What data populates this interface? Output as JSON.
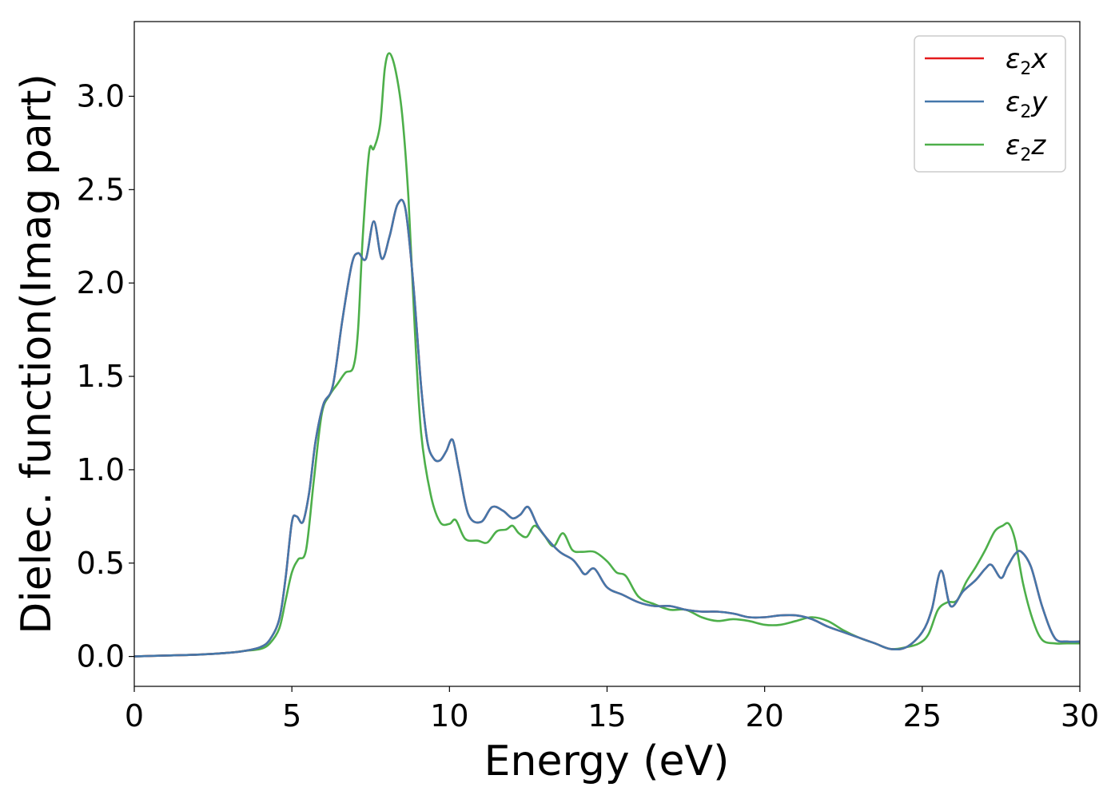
{
  "chart_data": {
    "type": "line",
    "xlabel": "Energy (eV)",
    "ylabel": "Dielec. function(Imag part)",
    "xlim": [
      0,
      30
    ],
    "ylim": [
      -0.16,
      3.4
    ],
    "xticks": [
      "0",
      "5",
      "10",
      "15",
      "20",
      "25",
      "30"
    ],
    "yticks": [
      "0.0",
      "0.5",
      "1.0",
      "1.5",
      "2.0",
      "2.5",
      "3.0"
    ],
    "grid": false,
    "legend_position": "top-right",
    "series": [
      {
        "name": "ε2x",
        "legend_base": "ε",
        "legend_sub": "2",
        "legend_var": "x",
        "color": "#e41a1c",
        "x": [
          0,
          1,
          2,
          3,
          3.5,
          4,
          4.3,
          4.6,
          4.8,
          5.0,
          5.15,
          5.35,
          5.55,
          5.75,
          6.0,
          6.3,
          6.6,
          6.9,
          7.1,
          7.35,
          7.6,
          7.85,
          8.1,
          8.35,
          8.6,
          8.85,
          9.1,
          9.3,
          9.5,
          9.7,
          9.9,
          10.1,
          10.3,
          10.6,
          11.0,
          11.35,
          11.7,
          12.0,
          12.25,
          12.5,
          12.8,
          13.1,
          13.5,
          13.9,
          14.1,
          14.3,
          14.6,
          15.0,
          15.5,
          16.0,
          16.5,
          17.0,
          17.5,
          18.0,
          18.5,
          19.0,
          19.5,
          20.0,
          20.5,
          21.0,
          21.5,
          22.0,
          22.5,
          23.0,
          23.5,
          24.0,
          24.5,
          25.0,
          25.3,
          25.6,
          25.9,
          26.3,
          26.7,
          27.0,
          27.2,
          27.5,
          27.7,
          27.95,
          28.15,
          28.45,
          28.8,
          29.2,
          29.6,
          30.0
        ],
        "y": [
          0.0,
          0.005,
          0.01,
          0.02,
          0.03,
          0.05,
          0.09,
          0.2,
          0.42,
          0.72,
          0.75,
          0.72,
          0.88,
          1.15,
          1.35,
          1.45,
          1.8,
          2.1,
          2.16,
          2.13,
          2.33,
          2.13,
          2.25,
          2.42,
          2.4,
          2.0,
          1.45,
          1.15,
          1.06,
          1.05,
          1.1,
          1.16,
          1.0,
          0.76,
          0.72,
          0.8,
          0.78,
          0.74,
          0.76,
          0.8,
          0.7,
          0.63,
          0.56,
          0.52,
          0.48,
          0.44,
          0.47,
          0.37,
          0.33,
          0.29,
          0.27,
          0.27,
          0.25,
          0.24,
          0.24,
          0.23,
          0.21,
          0.21,
          0.22,
          0.22,
          0.2,
          0.16,
          0.13,
          0.1,
          0.07,
          0.04,
          0.05,
          0.13,
          0.25,
          0.46,
          0.27,
          0.35,
          0.41,
          0.47,
          0.49,
          0.42,
          0.48,
          0.55,
          0.56,
          0.48,
          0.27,
          0.1,
          0.08,
          0.08
        ]
      },
      {
        "name": "ε2y",
        "legend_base": "ε",
        "legend_sub": "2",
        "legend_var": "y",
        "color": "#4477aa",
        "x": [
          0,
          1,
          2,
          3,
          3.5,
          4,
          4.3,
          4.6,
          4.8,
          5.0,
          5.15,
          5.35,
          5.55,
          5.75,
          6.0,
          6.3,
          6.6,
          6.9,
          7.1,
          7.35,
          7.6,
          7.85,
          8.1,
          8.35,
          8.6,
          8.85,
          9.1,
          9.3,
          9.5,
          9.7,
          9.9,
          10.1,
          10.3,
          10.6,
          11.0,
          11.35,
          11.7,
          12.0,
          12.25,
          12.5,
          12.8,
          13.1,
          13.5,
          13.9,
          14.1,
          14.3,
          14.6,
          15.0,
          15.5,
          16.0,
          16.5,
          17.0,
          17.5,
          18.0,
          18.5,
          19.0,
          19.5,
          20.0,
          20.5,
          21.0,
          21.5,
          22.0,
          22.5,
          23.0,
          23.5,
          24.0,
          24.5,
          25.0,
          25.3,
          25.6,
          25.9,
          26.3,
          26.7,
          27.0,
          27.2,
          27.5,
          27.7,
          27.95,
          28.15,
          28.45,
          28.8,
          29.2,
          29.6,
          30.0
        ],
        "y": [
          0.0,
          0.005,
          0.01,
          0.02,
          0.03,
          0.05,
          0.09,
          0.2,
          0.42,
          0.72,
          0.75,
          0.72,
          0.88,
          1.15,
          1.35,
          1.45,
          1.8,
          2.1,
          2.16,
          2.13,
          2.33,
          2.13,
          2.25,
          2.42,
          2.4,
          2.0,
          1.45,
          1.15,
          1.06,
          1.05,
          1.1,
          1.16,
          1.0,
          0.76,
          0.72,
          0.8,
          0.78,
          0.74,
          0.76,
          0.8,
          0.7,
          0.63,
          0.56,
          0.52,
          0.48,
          0.44,
          0.47,
          0.37,
          0.33,
          0.29,
          0.27,
          0.27,
          0.25,
          0.24,
          0.24,
          0.23,
          0.21,
          0.21,
          0.22,
          0.22,
          0.2,
          0.16,
          0.13,
          0.1,
          0.07,
          0.04,
          0.05,
          0.13,
          0.25,
          0.46,
          0.27,
          0.35,
          0.41,
          0.47,
          0.49,
          0.42,
          0.48,
          0.55,
          0.56,
          0.48,
          0.27,
          0.1,
          0.08,
          0.08
        ]
      },
      {
        "name": "ε2z",
        "legend_base": "ε",
        "legend_sub": "2",
        "legend_var": "z",
        "color": "#4daf4a",
        "x": [
          0,
          1,
          2,
          3,
          3.5,
          4,
          4.3,
          4.6,
          4.8,
          5.0,
          5.2,
          5.45,
          5.7,
          5.95,
          6.2,
          6.45,
          6.7,
          6.95,
          7.1,
          7.25,
          7.45,
          7.6,
          7.8,
          7.95,
          8.1,
          8.3,
          8.5,
          8.7,
          8.9,
          9.1,
          9.4,
          9.7,
          10.0,
          10.2,
          10.5,
          10.9,
          11.2,
          11.5,
          11.8,
          12.0,
          12.2,
          12.45,
          12.7,
          13.0,
          13.3,
          13.6,
          13.9,
          14.2,
          14.6,
          15.0,
          15.3,
          15.6,
          16.0,
          16.5,
          17.0,
          17.5,
          18.0,
          18.5,
          19.0,
          19.5,
          20.0,
          20.5,
          21.0,
          21.5,
          22.0,
          22.5,
          23.0,
          23.5,
          24.0,
          24.5,
          24.9,
          25.2,
          25.5,
          25.8,
          26.1,
          26.4,
          26.7,
          27.0,
          27.3,
          27.55,
          27.75,
          27.95,
          28.2,
          28.5,
          28.8,
          29.2,
          29.6,
          30.0
        ],
        "y": [
          0.0,
          0.005,
          0.01,
          0.02,
          0.03,
          0.04,
          0.07,
          0.15,
          0.3,
          0.45,
          0.52,
          0.57,
          0.95,
          1.3,
          1.4,
          1.46,
          1.52,
          1.55,
          1.75,
          2.25,
          2.7,
          2.72,
          2.85,
          3.15,
          3.23,
          3.13,
          2.9,
          2.45,
          1.75,
          1.2,
          0.87,
          0.72,
          0.71,
          0.73,
          0.63,
          0.62,
          0.61,
          0.67,
          0.68,
          0.7,
          0.66,
          0.64,
          0.7,
          0.65,
          0.59,
          0.66,
          0.57,
          0.56,
          0.56,
          0.51,
          0.45,
          0.43,
          0.32,
          0.28,
          0.25,
          0.25,
          0.21,
          0.19,
          0.2,
          0.19,
          0.17,
          0.17,
          0.19,
          0.21,
          0.19,
          0.14,
          0.1,
          0.07,
          0.04,
          0.05,
          0.07,
          0.12,
          0.25,
          0.29,
          0.3,
          0.4,
          0.48,
          0.57,
          0.67,
          0.7,
          0.71,
          0.62,
          0.39,
          0.2,
          0.09,
          0.07,
          0.07,
          0.07
        ]
      }
    ]
  }
}
